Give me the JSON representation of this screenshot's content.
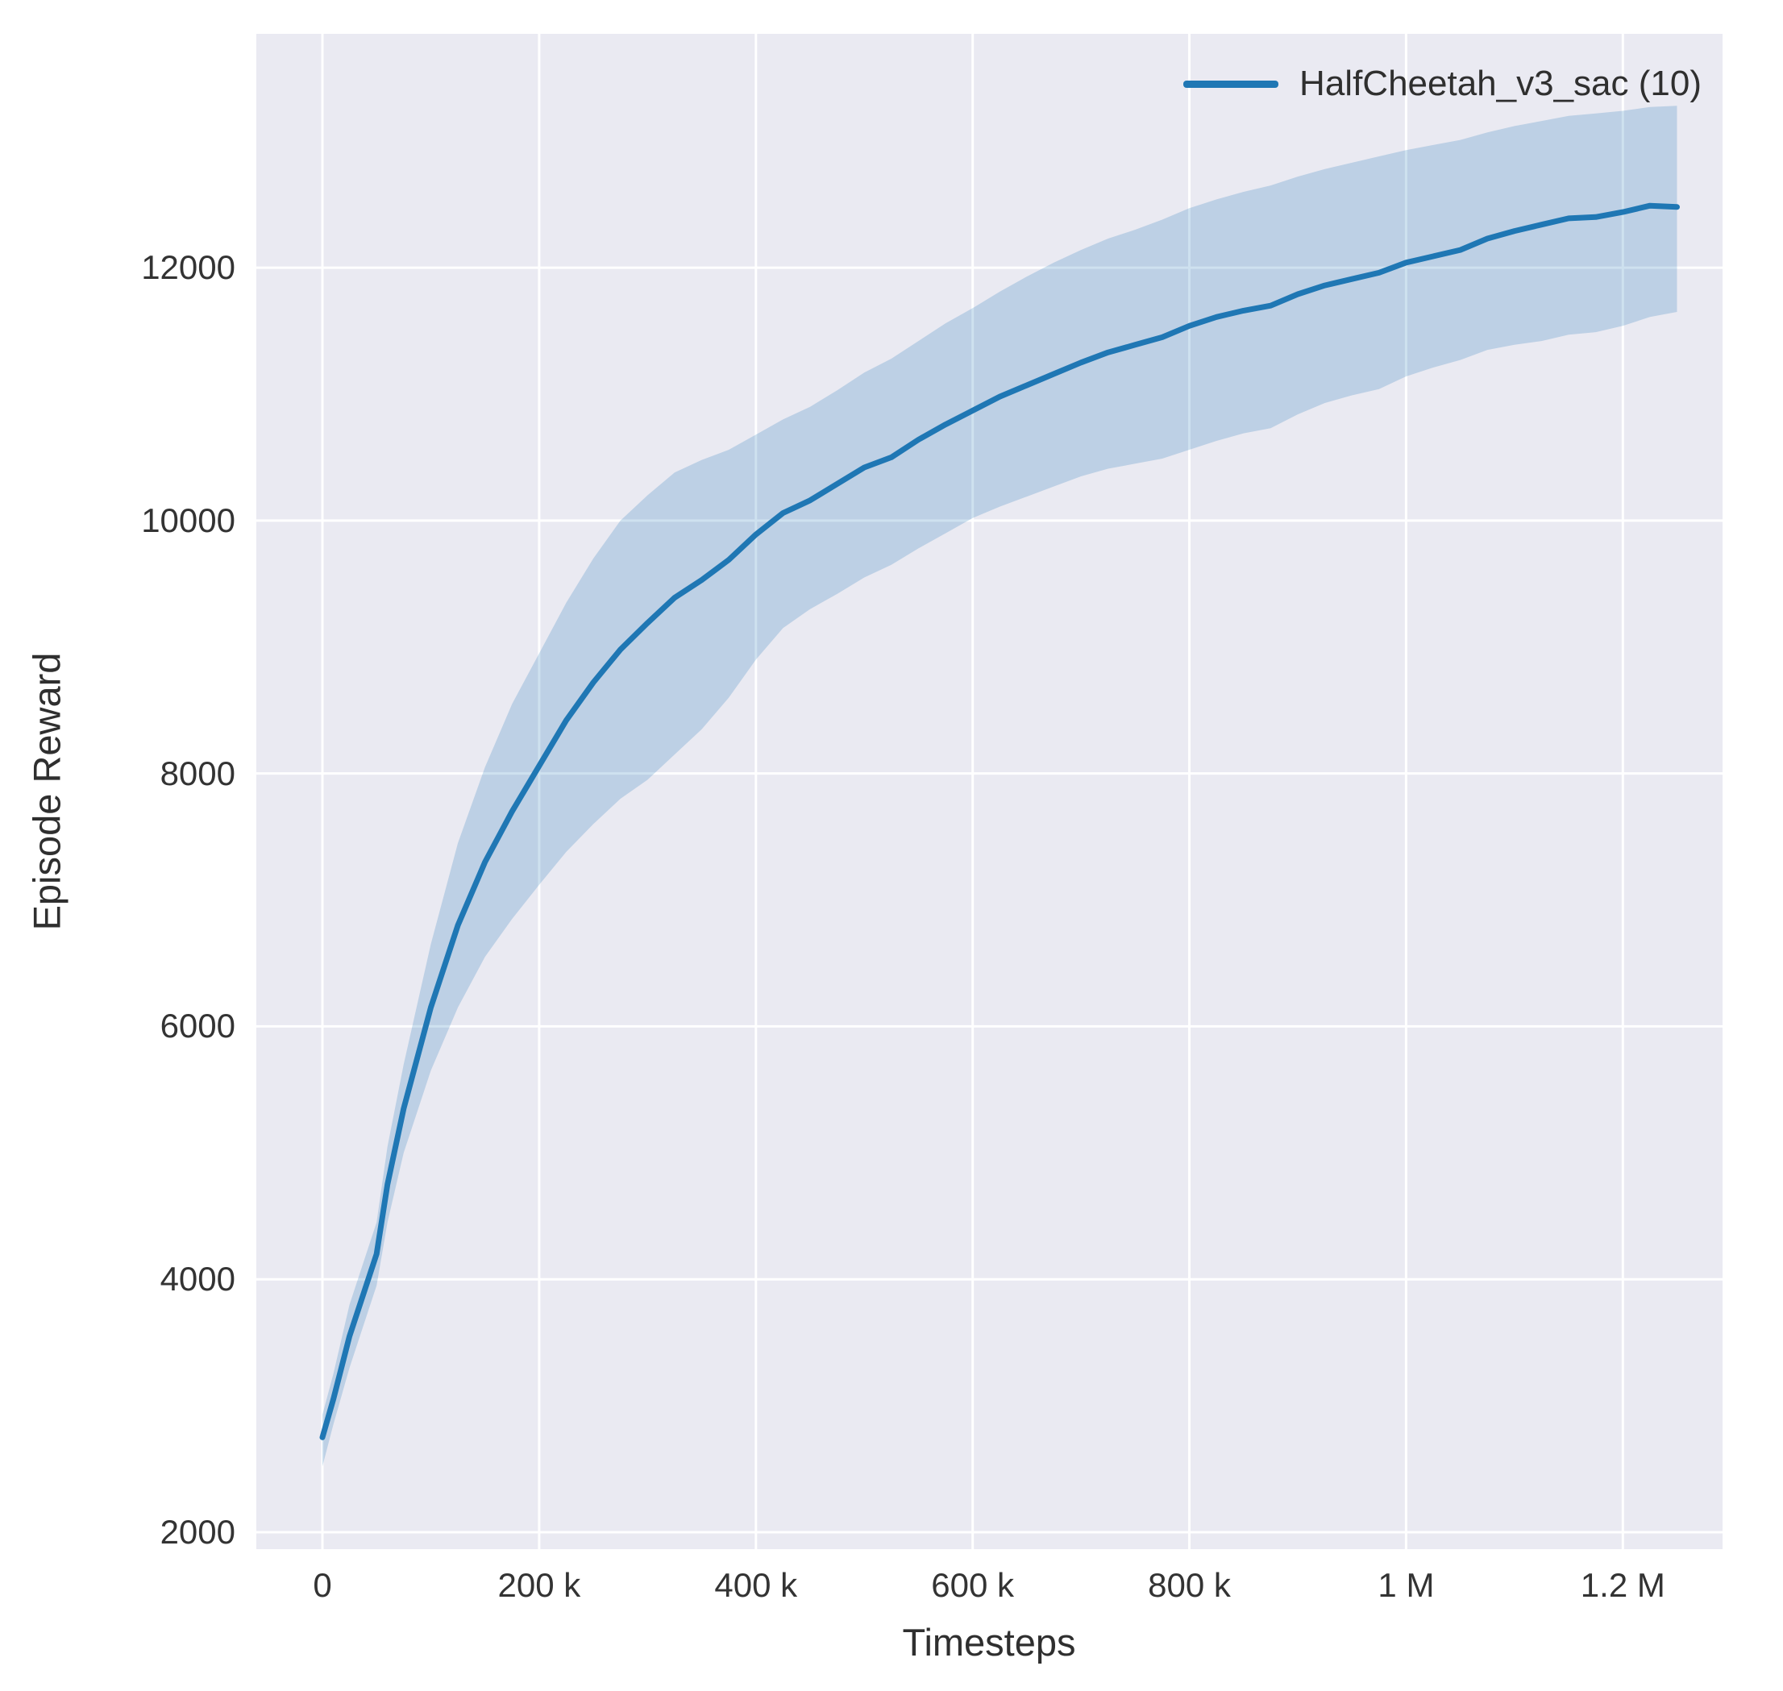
{
  "figure": {
    "background": "#ffffff",
    "plot_background": "#eaeaf2",
    "grid_color": "#ffffff",
    "text_color": "#333333"
  },
  "chart_data": {
    "type": "line",
    "title": "",
    "xlabel": "Timesteps",
    "ylabel": "Episode Reward",
    "grid": true,
    "legend_position": "upper right",
    "legend": [
      {
        "label": "HalfCheetah_v3_sac (10)",
        "color": "#1f77b4"
      }
    ],
    "xlim": [
      -61000,
      1292000
    ],
    "ylim": [
      1866,
      13849
    ],
    "xticks": [
      {
        "value": 0,
        "label": "0"
      },
      {
        "value": 200000,
        "label": "200 k"
      },
      {
        "value": 400000,
        "label": "400 k"
      },
      {
        "value": 600000,
        "label": "600 k"
      },
      {
        "value": 800000,
        "label": "800 k"
      },
      {
        "value": 1000000,
        "label": "1 M"
      },
      {
        "value": 1200000,
        "label": "1.2 M"
      }
    ],
    "yticks": [
      {
        "value": 2000,
        "label": "2000"
      },
      {
        "value": 4000,
        "label": "4000"
      },
      {
        "value": 6000,
        "label": "6000"
      },
      {
        "value": 8000,
        "label": "8000"
      },
      {
        "value": 10000,
        "label": "10000"
      },
      {
        "value": 12000,
        "label": "12000"
      }
    ],
    "series": [
      {
        "name": "HalfCheetah_v3_sac (10)",
        "color": "#1f77b4",
        "band_opacity": 0.22,
        "x": [
          0,
          10000,
          25000,
          50000,
          60000,
          75000,
          100000,
          125000,
          150000,
          175000,
          200000,
          225000,
          250000,
          275000,
          300000,
          325000,
          350000,
          375000,
          400000,
          425000,
          450000,
          475000,
          500000,
          525000,
          550000,
          575000,
          600000,
          625000,
          650000,
          675000,
          700000,
          725000,
          750000,
          775000,
          800000,
          825000,
          850000,
          875000,
          900000,
          925000,
          950000,
          975000,
          1000000,
          1025000,
          1050000,
          1075000,
          1100000,
          1125000,
          1150000,
          1175000,
          1200000,
          1225000,
          1250000
        ],
        "mean": [
          2750,
          3050,
          3550,
          4200,
          4750,
          5350,
          6150,
          6800,
          7300,
          7700,
          8060,
          8420,
          8720,
          8980,
          9190,
          9390,
          9530,
          9690,
          9890,
          10060,
          10160,
          10290,
          10420,
          10500,
          10640,
          10760,
          10870,
          10980,
          11070,
          11160,
          11250,
          11330,
          11390,
          11450,
          11540,
          11610,
          11660,
          11700,
          11790,
          11860,
          11910,
          11960,
          12040,
          12090,
          12140,
          12230,
          12290,
          12340,
          12390,
          12400,
          12440,
          12490,
          12480
        ],
        "lower": [
          2520,
          2850,
          3300,
          3950,
          4450,
          5000,
          5650,
          6150,
          6550,
          6850,
          7120,
          7380,
          7600,
          7800,
          7950,
          8150,
          8350,
          8600,
          8900,
          9150,
          9300,
          9420,
          9550,
          9650,
          9780,
          9900,
          10020,
          10110,
          10190,
          10270,
          10350,
          10410,
          10450,
          10490,
          10560,
          10630,
          10690,
          10730,
          10840,
          10930,
          10990,
          11040,
          11140,
          11210,
          11270,
          11350,
          11390,
          11420,
          11470,
          11490,
          11540,
          11610,
          11650
        ],
        "upper": [
          2930,
          3250,
          3800,
          4450,
          5050,
          5700,
          6650,
          7450,
          8050,
          8550,
          8950,
          9350,
          9700,
          10000,
          10200,
          10380,
          10480,
          10560,
          10680,
          10800,
          10900,
          11030,
          11170,
          11280,
          11420,
          11560,
          11680,
          11810,
          11930,
          12040,
          12140,
          12230,
          12300,
          12380,
          12470,
          12540,
          12600,
          12650,
          12720,
          12780,
          12830,
          12880,
          12930,
          12970,
          13010,
          13070,
          13120,
          13160,
          13200,
          13220,
          13240,
          13270,
          13280
        ]
      }
    ]
  }
}
